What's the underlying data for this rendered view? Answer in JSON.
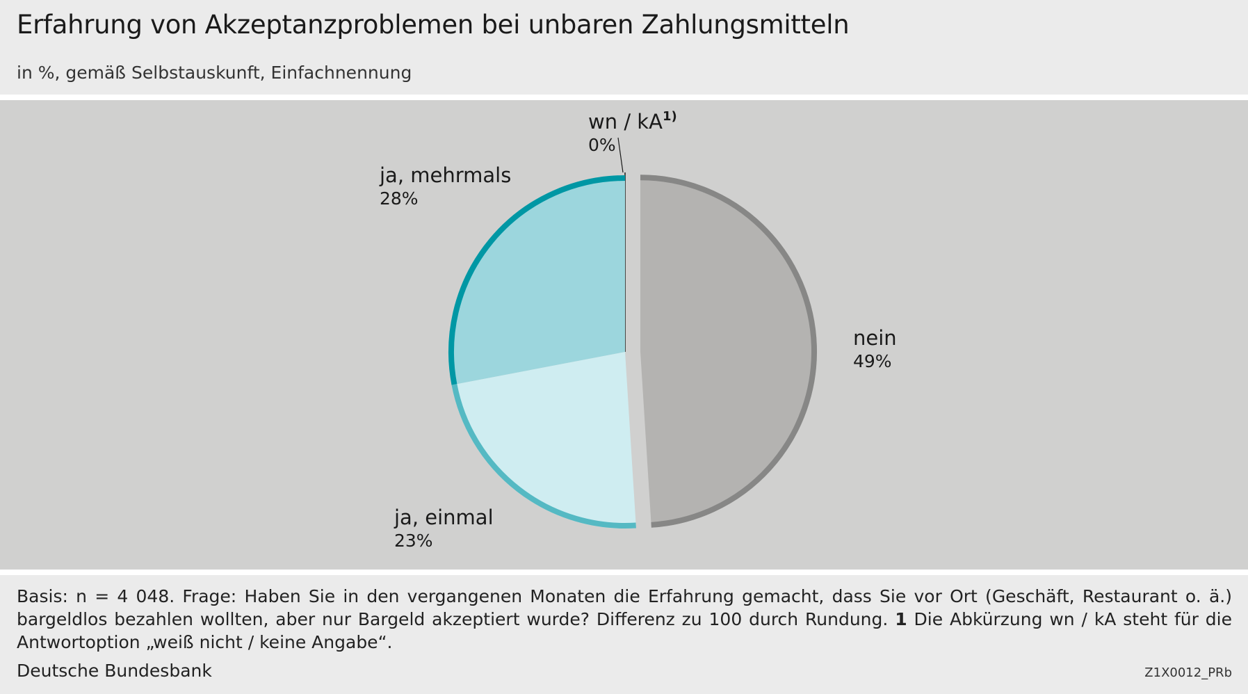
{
  "header": {
    "title": "Erfahrung von Akzeptanzproblemen bei unbaren Zahlungsmitteln",
    "subtitle": "in %, gemäß Selbstauskunft, Einfachnennung"
  },
  "chart_data": {
    "type": "pie",
    "title": "Erfahrung von Akzeptanzproblemen bei unbaren Zahlungsmitteln",
    "subtitle": "in %, gemäß Selbstauskunft, Einfachnennung",
    "unit": "%",
    "slices": [
      {
        "label": "wn / kA",
        "footnote": "1)",
        "value": 0,
        "value_label": "0%",
        "fill": "#1a1a1a",
        "stroke": "#1a1a1a"
      },
      {
        "label": "nein",
        "value": 49,
        "value_label": "49%",
        "fill": "#b4b3b1",
        "stroke": "#878786",
        "exploded": true
      },
      {
        "label": "ja, einmal",
        "value": 23,
        "value_label": "23%",
        "fill": "#cfedf1",
        "stroke": "#55b9c3"
      },
      {
        "label": "ja, mehrmals",
        "value": 28,
        "value_label": "28%",
        "fill": "#9cd6dd",
        "stroke": "#0097a4"
      }
    ],
    "start_angle": "12 o'clock",
    "direction": "clockwise"
  },
  "footer": {
    "note_part1": "Basis: n = 4 048. Frage: Haben Sie in den vergangenen Monaten die Erfahrung gemacht, dass Sie vor Ort (Geschäft, Restaurant o. ä.) bargeldlos be­zahlen wollten, aber nur Bargeld akzeptiert wurde? Differenz zu 100 durch Rundung.",
    "note_marker": "1",
    "note_part2": "Die Abkürzung wn / kA steht für die Antwortoption „weiß nicht / keine Angabe“.",
    "source": "Deutsche Bundesbank",
    "code": "Z1X0012_PRb"
  }
}
